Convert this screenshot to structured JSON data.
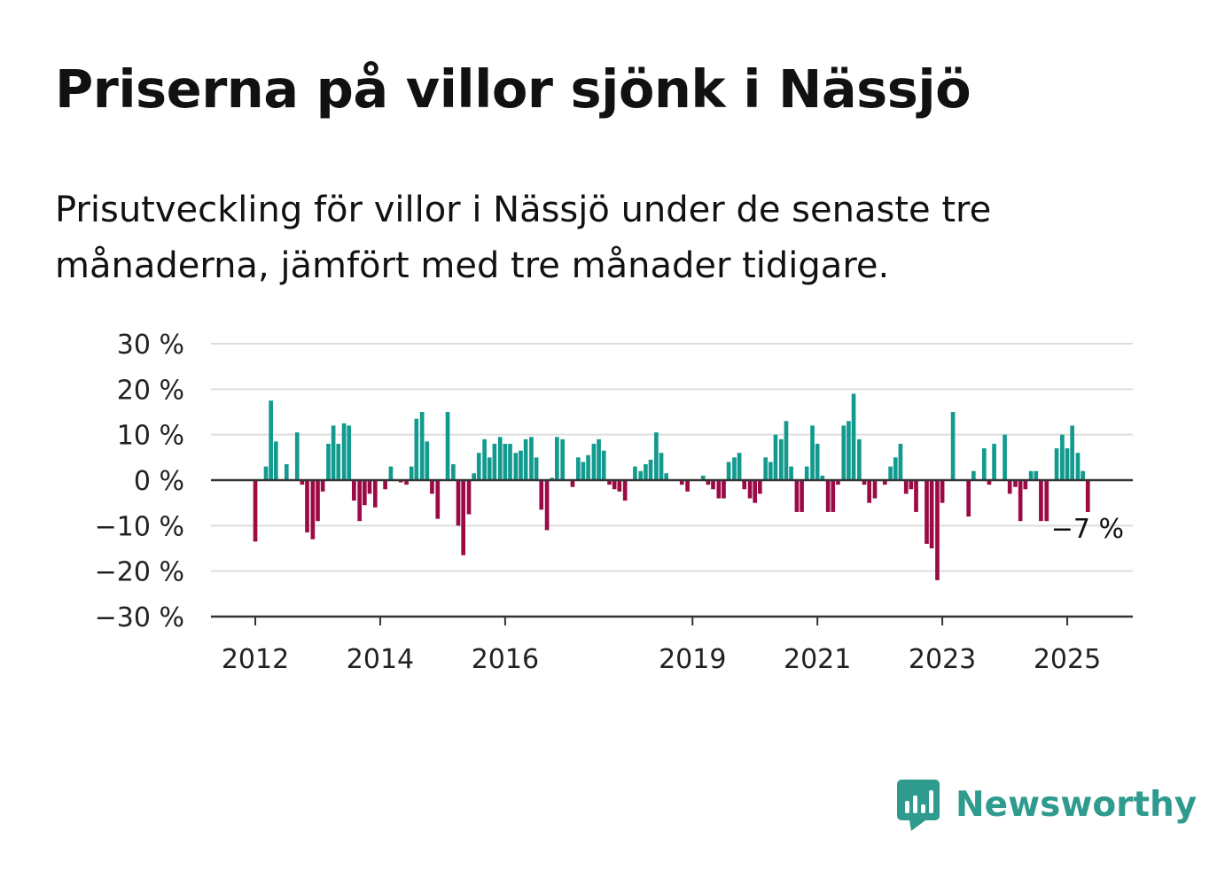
{
  "title": "Priserna på villor sjönk i Nässjö",
  "subtitle": "Prisutveckling för villor i Nässjö under de senaste tre månaderna, jämfört med tre månader tidigare.",
  "brand": {
    "name": "Newsworthy",
    "icon": "newsworthy-logo-icon"
  },
  "colors": {
    "positive": "#139a8e",
    "negative": "#9c0a45",
    "grid": "#dddddd",
    "axis": "#333333",
    "text": "#111111"
  },
  "chart_data": {
    "type": "bar",
    "ylim": [
      -30,
      30
    ],
    "y_ticks": [
      30,
      20,
      10,
      0,
      -10,
      -20,
      -30
    ],
    "y_tick_labels": [
      "30 %",
      "20 %",
      "10 %",
      "0 %",
      "−10 %",
      "−20 %",
      "−30 %"
    ],
    "x_tick_labels": [
      "2012",
      "2014",
      "2016",
      "2019",
      "2021",
      "2023",
      "2025"
    ],
    "x_tick_positions": [
      2012,
      2014,
      2016,
      2019,
      2021,
      2023,
      2025
    ],
    "xlim": [
      2011.29,
      2026.05
    ],
    "annotation": "−7 %",
    "grid": true,
    "x": [
      2012.0,
      2012.08,
      2012.17,
      2012.25,
      2012.33,
      2012.42,
      2012.5,
      2012.58,
      2012.67,
      2012.75,
      2012.83,
      2012.92,
      2013.0,
      2013.08,
      2013.17,
      2013.25,
      2013.33,
      2013.42,
      2013.5,
      2013.58,
      2013.67,
      2013.75,
      2013.83,
      2013.92,
      2014.0,
      2014.08,
      2014.17,
      2014.25,
      2014.33,
      2014.42,
      2014.5,
      2014.58,
      2014.67,
      2014.75,
      2014.83,
      2014.92,
      2015.0,
      2015.08,
      2015.17,
      2015.25,
      2015.33,
      2015.42,
      2015.5,
      2015.58,
      2015.67,
      2015.75,
      2015.83,
      2015.92,
      2016.0,
      2016.08,
      2016.17,
      2016.25,
      2016.33,
      2016.42,
      2016.5,
      2016.58,
      2016.67,
      2016.75,
      2016.83,
      2016.92,
      2017.0,
      2017.08,
      2017.17,
      2017.25,
      2017.33,
      2017.42,
      2017.5,
      2017.58,
      2017.67,
      2017.75,
      2017.83,
      2017.92,
      2018.0,
      2018.08,
      2018.17,
      2018.25,
      2018.33,
      2018.42,
      2018.5,
      2018.58,
      2018.67,
      2018.75,
      2018.83,
      2018.92,
      2019.0,
      2019.08,
      2019.17,
      2019.25,
      2019.33,
      2019.42,
      2019.5,
      2019.58,
      2019.67,
      2019.75,
      2019.83,
      2019.92,
      2020.0,
      2020.08,
      2020.17,
      2020.25,
      2020.33,
      2020.42,
      2020.5,
      2020.58,
      2020.67,
      2020.75,
      2020.83,
      2020.92,
      2021.0,
      2021.08,
      2021.17,
      2021.25,
      2021.33,
      2021.42,
      2021.5,
      2021.58,
      2021.67,
      2021.75,
      2021.83,
      2021.92,
      2022.0,
      2022.08,
      2022.17,
      2022.25,
      2022.33,
      2022.42,
      2022.5,
      2022.58,
      2022.67,
      2022.75,
      2022.83,
      2022.92,
      2023.0,
      2023.08,
      2023.17,
      2023.25,
      2023.33,
      2023.42,
      2023.5,
      2023.58,
      2023.67,
      2023.75,
      2023.83,
      2023.92,
      2024.0,
      2024.08,
      2024.17,
      2024.25,
      2024.33,
      2024.42,
      2024.5,
      2024.58,
      2024.67,
      2024.75,
      2024.83,
      2024.92,
      2025.0,
      2025.08,
      2025.17,
      2025.25,
      2025.33
    ],
    "values": [
      -13.5,
      0,
      3,
      17.5,
      8.5,
      0,
      3.5,
      0,
      10.5,
      -1,
      -11.5,
      -13,
      -9,
      -2.5,
      8,
      12,
      8,
      12.5,
      12,
      -4.5,
      -9,
      -5.5,
      -3,
      -6,
      0,
      -2,
      3,
      0,
      -0.5,
      -1,
      3,
      13.5,
      15,
      8.5,
      -3,
      -8.5,
      0,
      15,
      3.5,
      -10,
      -16.5,
      -7.5,
      1.5,
      6,
      9,
      5,
      8,
      9.5,
      8,
      8,
      6,
      6.5,
      9,
      9.5,
      5,
      -6.5,
      -11,
      0.5,
      9.5,
      9,
      0,
      -1.5,
      5,
      4,
      5.5,
      8,
      9,
      6.5,
      -1,
      -2,
      -2.5,
      -4.5,
      0,
      3,
      2,
      3.5,
      4.5,
      10.5,
      6,
      1.5,
      0,
      0,
      -1,
      -2.5,
      0,
      0,
      1,
      -1,
      -2,
      -4,
      -4,
      4,
      5,
      6,
      -2,
      -4,
      -5,
      -3,
      5,
      4,
      10,
      9,
      13,
      3,
      -7,
      -7,
      3,
      12,
      8,
      1,
      -7,
      -7,
      -1,
      12,
      13,
      19,
      9,
      -1,
      -5,
      -4,
      0,
      -1,
      3,
      5,
      8,
      -3,
      -2,
      -7,
      0,
      -14,
      -15,
      -22,
      -5,
      0,
      15,
      0,
      0,
      -8,
      2,
      0,
      7,
      -1,
      8,
      0,
      10,
      -3,
      -1.5,
      -9,
      -2,
      2,
      2,
      -9,
      -9,
      0,
      7,
      10,
      7,
      12,
      6,
      2,
      -7
    ]
  }
}
